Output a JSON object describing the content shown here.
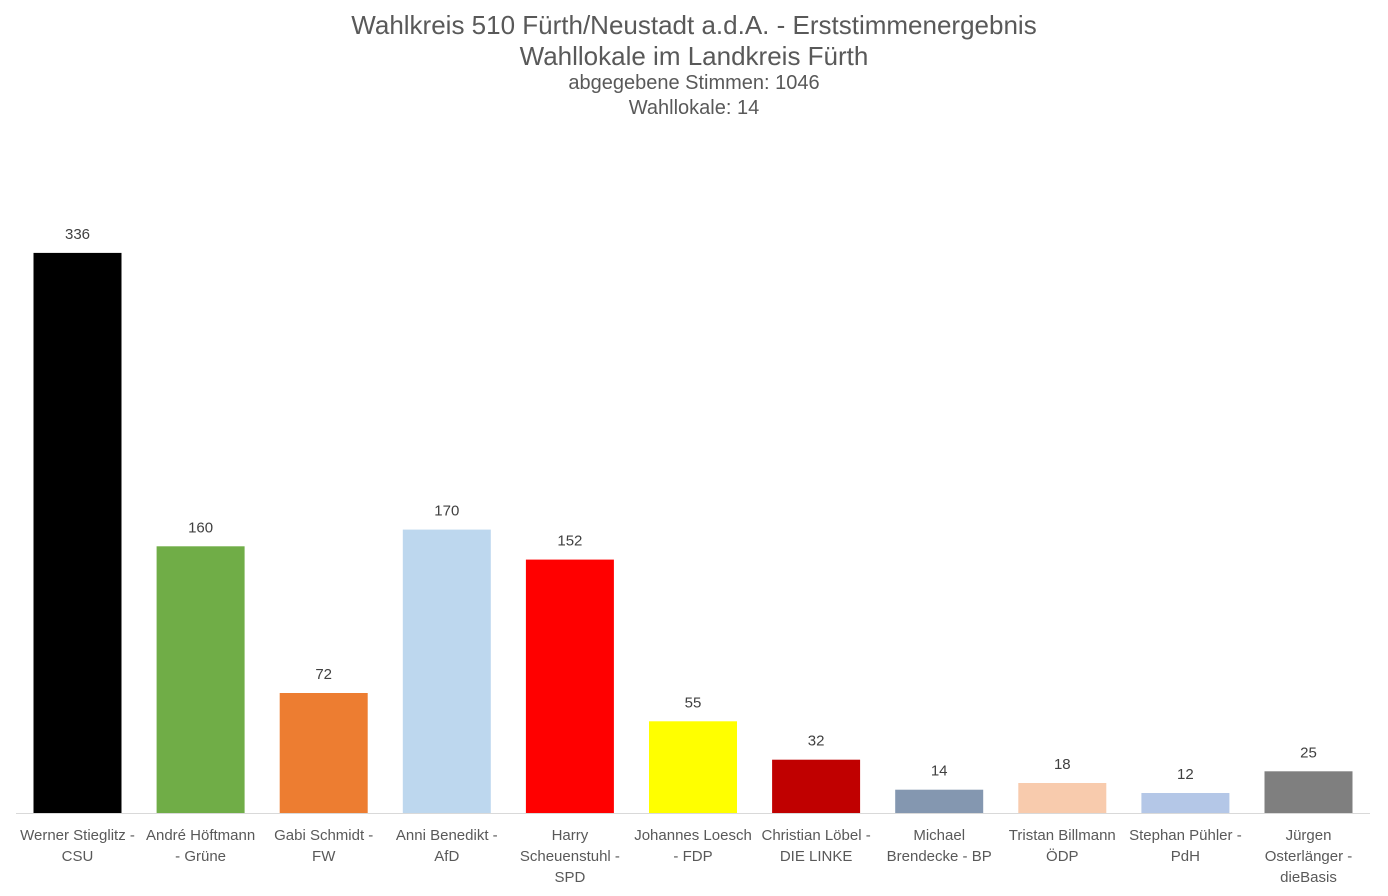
{
  "chart_data": {
    "type": "bar",
    "title": "Wahlkreis 510 Fürth/Neustadt a.d.A. - Erststimmenergebnis",
    "subtitle": "Wahllokale im Landkreis Fürth",
    "subtitle_lines": [
      "abgegebene Stimmen: 1046",
      "Wahllokale: 14"
    ],
    "categories": [
      [
        "Werner Stieglitz -",
        "CSU"
      ],
      [
        "André Höftmann",
        "- Grüne"
      ],
      [
        "Gabi Schmidt -",
        "FW"
      ],
      [
        "Anni Benedikt -",
        "AfD"
      ],
      [
        "Harry",
        "Scheuenstuhl -",
        "SPD"
      ],
      [
        "Johannes Loesch",
        "- FDP"
      ],
      [
        "Christian Löbel -",
        "DIE LINKE"
      ],
      [
        "Michael",
        "Brendecke - BP"
      ],
      [
        "Tristan Billmann",
        "ÖDP"
      ],
      [
        "Stephan Pühler -",
        "PdH"
      ],
      [
        "Jürgen",
        "Osterlänger -",
        "dieBasis"
      ]
    ],
    "values": [
      336,
      160,
      72,
      170,
      152,
      55,
      32,
      14,
      18,
      12,
      25
    ],
    "colors": [
      "#000000",
      "#70ad47",
      "#ed7d31",
      "#bdd7ee",
      "#ff0000",
      "#ffff00",
      "#c00000",
      "#8497b0",
      "#f8cbad",
      "#b4c7e7",
      "#7f7f7f"
    ],
    "ylim": [
      0,
      360
    ],
    "grid": false,
    "legend": "none",
    "xlabel": "",
    "ylabel": ""
  }
}
